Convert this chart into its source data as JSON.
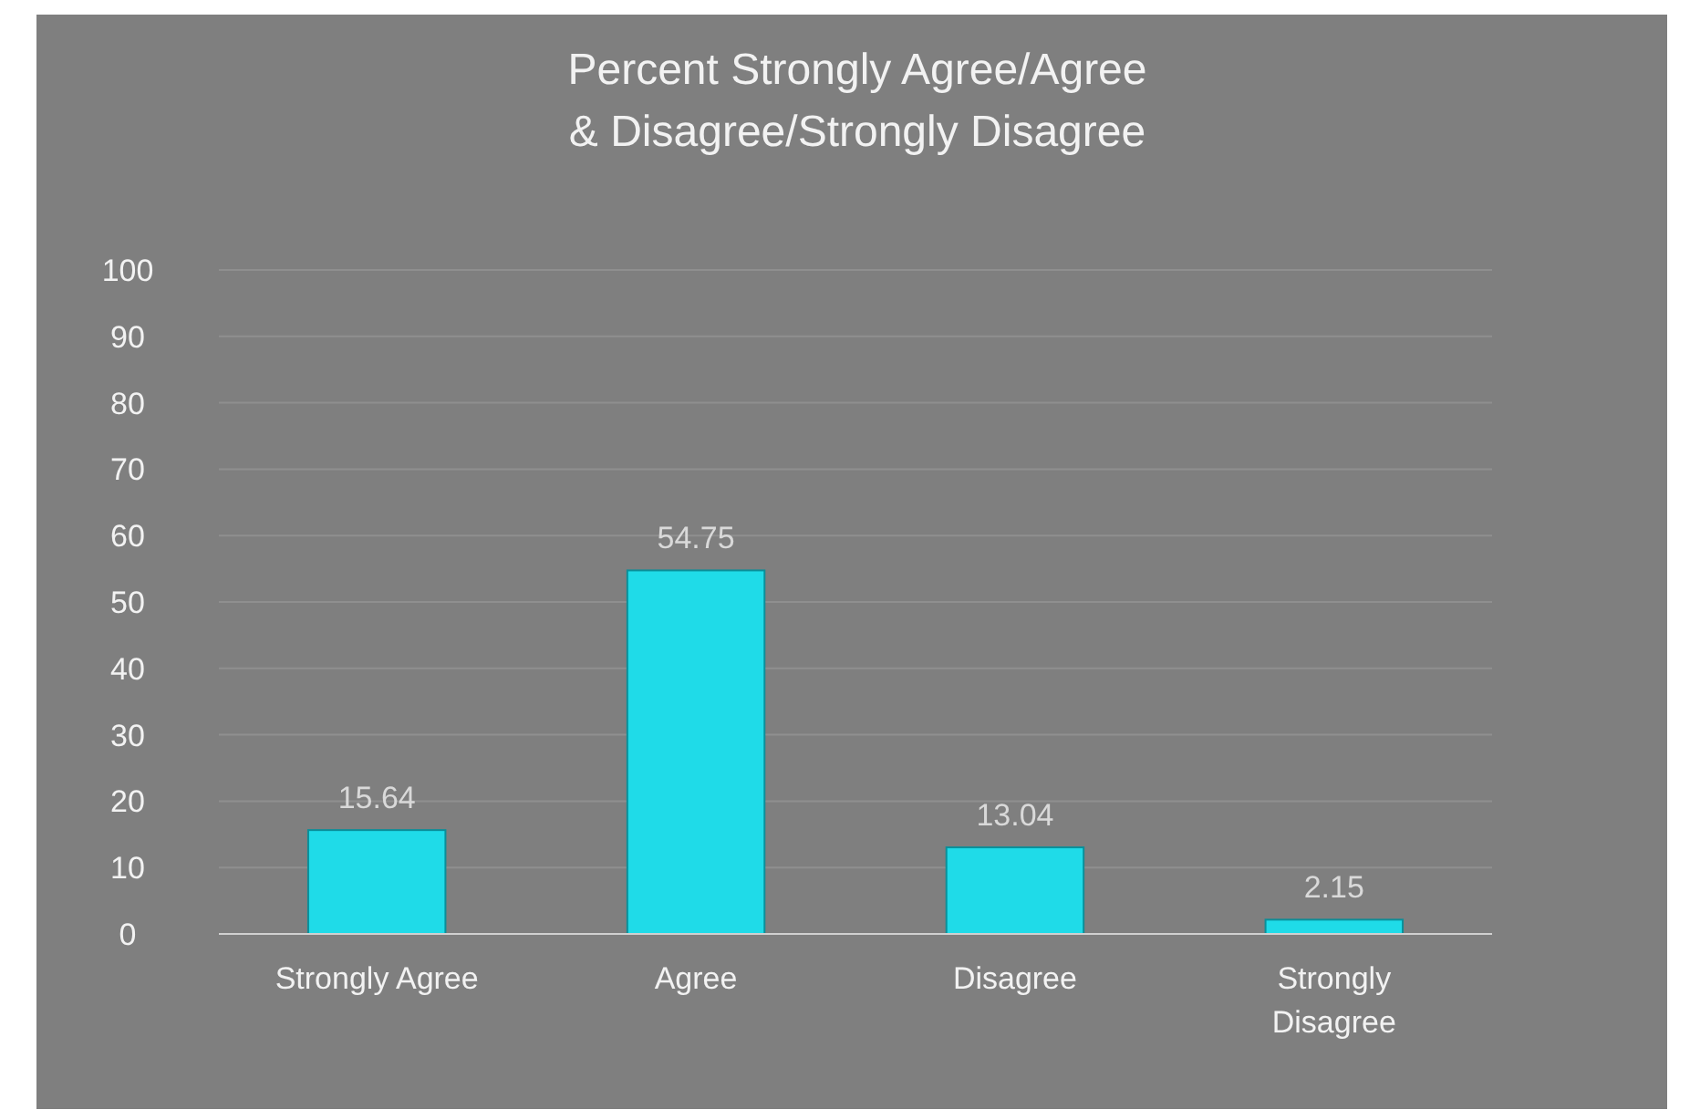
{
  "chart_data": {
    "type": "bar",
    "title": "Percent Strongly Agree/Agree\n& Disagree/Strongly Disagree",
    "categories": [
      "Strongly Agree",
      "Agree",
      "Disagree",
      "Strongly Disagree"
    ],
    "values": [
      15.64,
      54.75,
      13.04,
      2.15
    ],
    "color": "#1fdbe8",
    "ylim": [
      0,
      100
    ],
    "yticks": [
      0,
      10,
      20,
      30,
      40,
      50,
      60,
      70,
      80,
      90,
      100
    ],
    "grid": "y",
    "data_labels": true
  }
}
